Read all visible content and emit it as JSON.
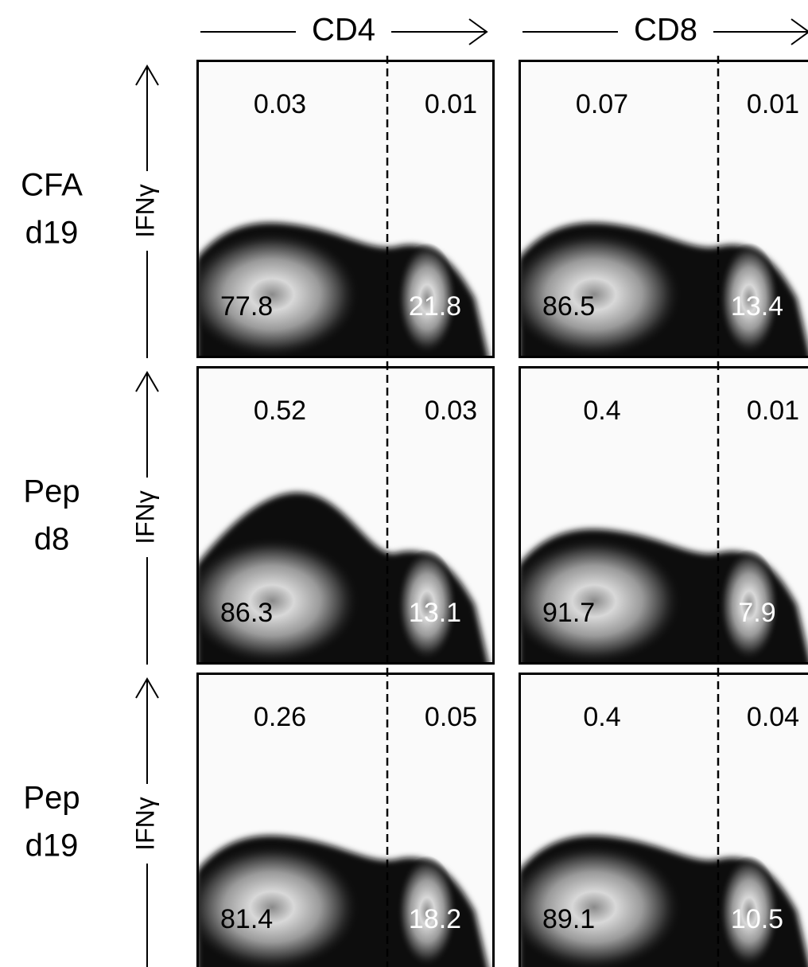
{
  "columns": [
    {
      "label": "CD4"
    },
    {
      "label": "CD8"
    }
  ],
  "y_axis_label": "IFNγ",
  "rows": [
    {
      "label_lines": [
        "CFA",
        "d19"
      ],
      "panels": [
        {
          "upper_left": "0.03",
          "upper_right": "0.01",
          "lower_left": "77.8",
          "lower_right": "21.8"
        },
        {
          "upper_left": "0.07",
          "upper_right": "0.01",
          "lower_left": "86.5",
          "lower_right": "13.4"
        }
      ]
    },
    {
      "label_lines": [
        "Pep",
        "d8"
      ],
      "panels": [
        {
          "upper_left": "0.52",
          "upper_right": "0.03",
          "lower_left": "86.3",
          "lower_right": "13.1"
        },
        {
          "upper_left": "0.4",
          "upper_right": "0.01",
          "lower_left": "91.7",
          "lower_right": "7.9"
        }
      ]
    },
    {
      "label_lines": [
        "Pep",
        "d19"
      ],
      "panels": [
        {
          "upper_left": "0.26",
          "upper_right": "0.05",
          "lower_left": "81.4",
          "lower_right": "18.2"
        },
        {
          "upper_left": "0.4",
          "upper_right": "0.04",
          "lower_left": "89.1",
          "lower_right": "10.5"
        }
      ]
    }
  ]
}
